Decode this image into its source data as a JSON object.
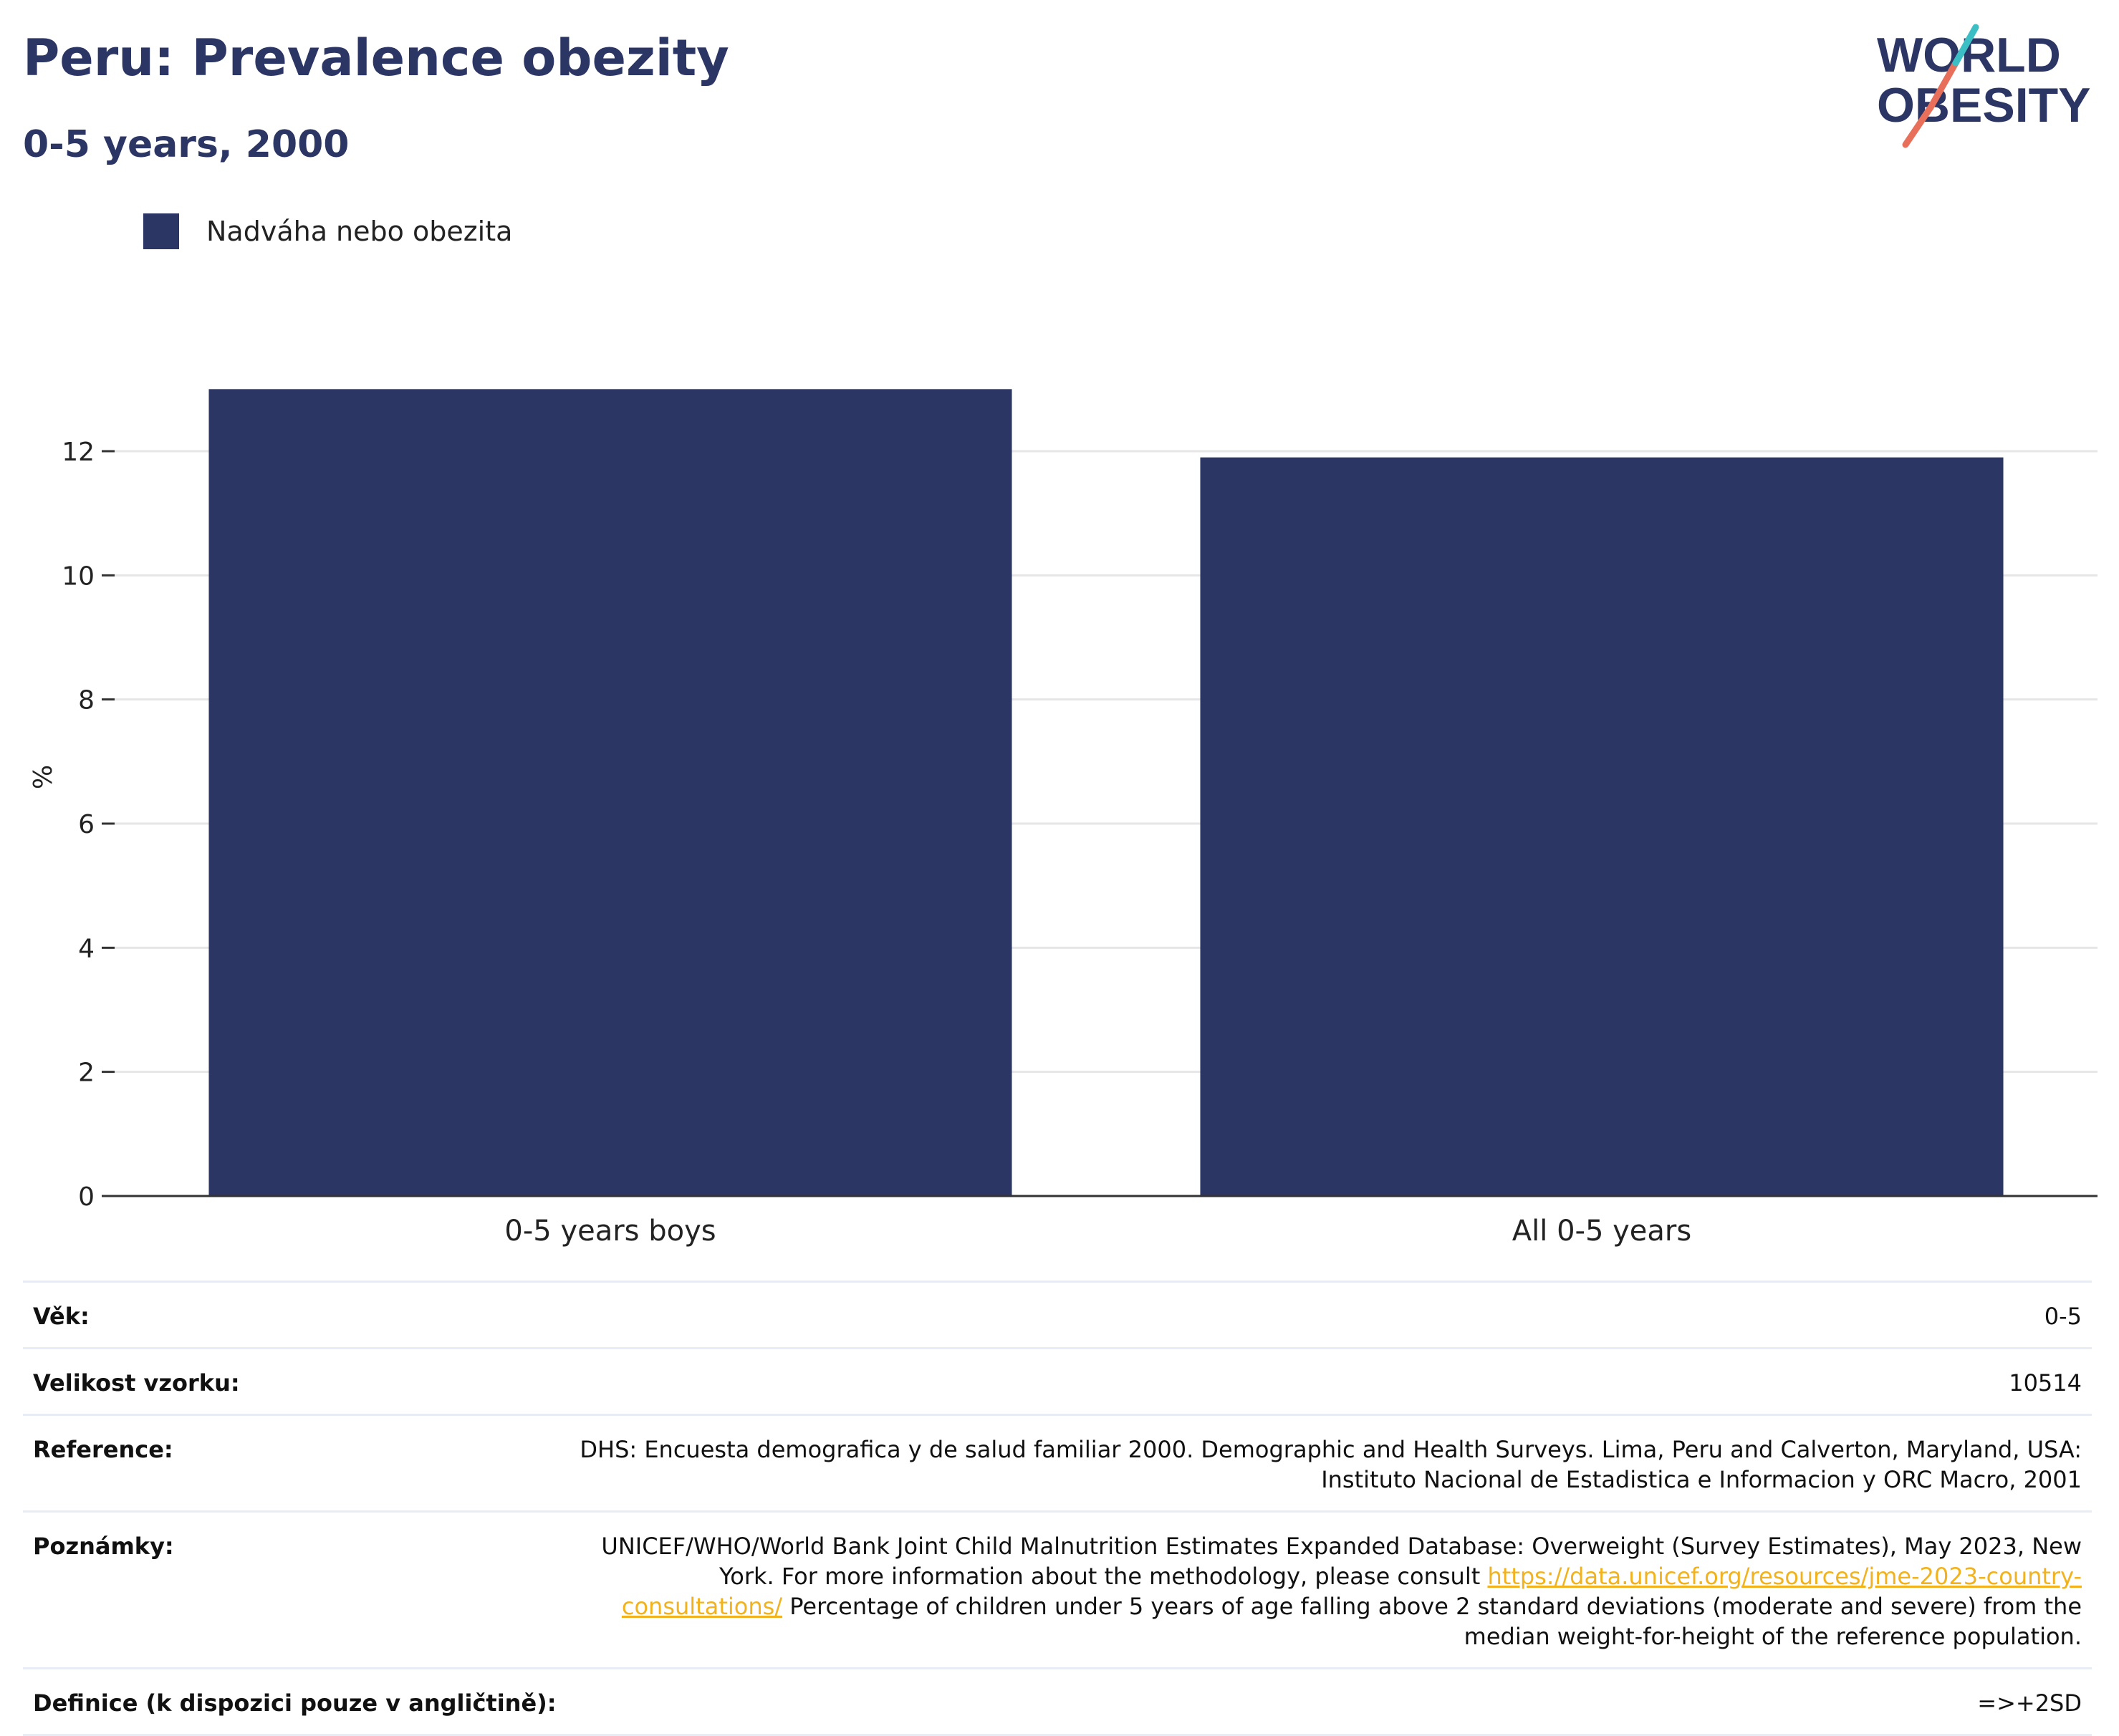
{
  "title": "Peru: Prevalence obezity",
  "subtitle": "0-5 years, 2000",
  "logo": {
    "line1": "WORLD",
    "line2": "OBESITY"
  },
  "colors": {
    "bar": "#2b3664",
    "title": "#2b3664",
    "grid": "#e6e6e6",
    "link": "#f2b21d"
  },
  "chart_data": {
    "type": "bar",
    "categories": [
      "0-5 years boys",
      "All 0-5 years"
    ],
    "series": [
      {
        "name": "Nadváha nebo obezita",
        "values": [
          13.0,
          11.9
        ]
      }
    ],
    "ylabel": "%",
    "ylim": [
      0,
      13.5
    ],
    "yticks": [
      0,
      2,
      4,
      6,
      8,
      10,
      12
    ],
    "grid": true,
    "legend": "top-left"
  },
  "info": {
    "age_label": "Věk:",
    "age_value": "0-5",
    "sample_label": "Velikost vzorku:",
    "sample_value": "10514",
    "reference_label": "Reference:",
    "reference_value": "DHS: Encuesta demografica y de salud familiar 2000. Demographic and Health Surveys. Lima, Peru and Calverton, Maryland, USA: Instituto Nacional de Estadistica e Informacion y ORC Macro, 2001",
    "notes_label": "Poznámky:",
    "notes_text1": "UNICEF/WHO/World Bank Joint Child Malnutrition Estimates Expanded Database: Overweight (Survey Estimates), May 2023, New York. For more information about the methodology, please consult ",
    "notes_link": "https://data.unicef.org/resources/jme-2023-country-consultations/",
    "notes_text2": " Percentage of children under 5 years of age falling above 2 standard deviations (moderate and severe) from the median weight-for-height of the reference population.",
    "definition_label": "Definice (k dispozici pouze v angličtině):",
    "definition_value": "=>+2SD"
  }
}
